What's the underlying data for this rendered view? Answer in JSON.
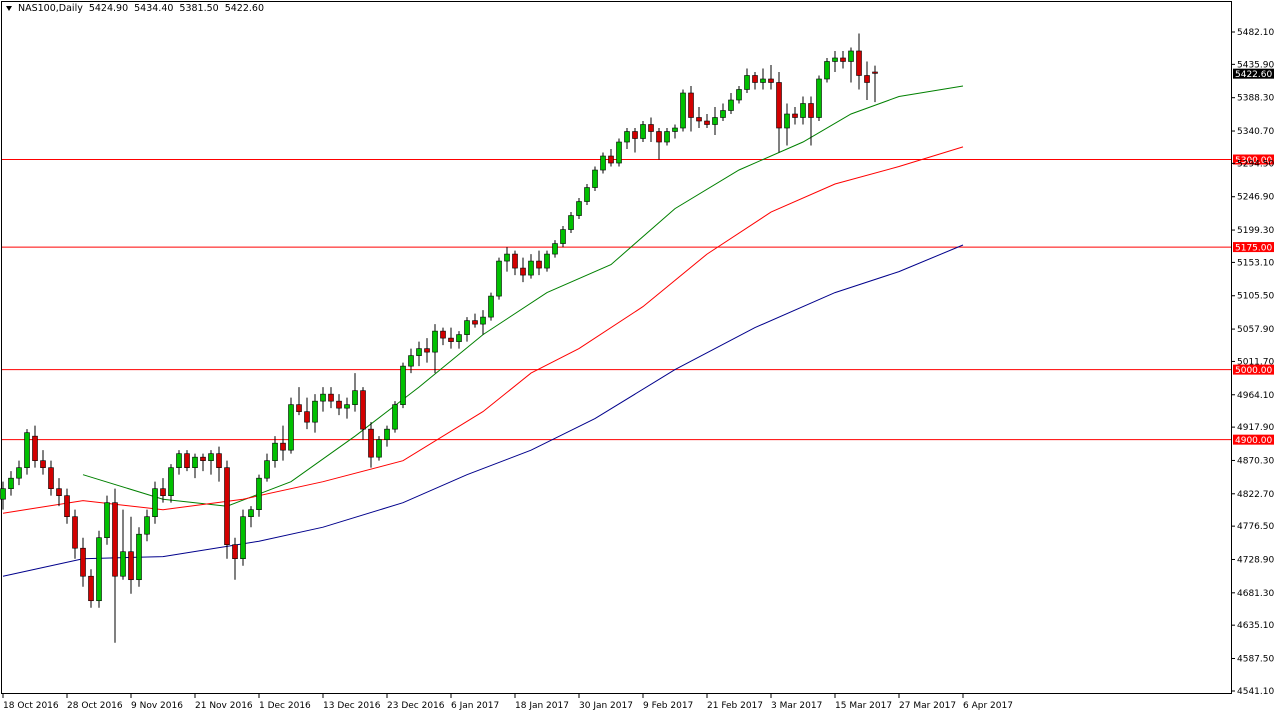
{
  "header": {
    "symbol": "NAS100,Daily",
    "open": "5424.90",
    "high": "5434.40",
    "low": "5381.50",
    "close": "5422.60"
  },
  "chart_data": {
    "type": "candlestick",
    "title": "NAS100,Daily",
    "ylim": [
      4541.1,
      5482.1
    ],
    "yticks": [
      "5482.10",
      "5435.90",
      "5388.30",
      "5340.70",
      "5294.50",
      "5246.90",
      "5199.30",
      "5153.10",
      "5105.50",
      "5057.90",
      "5011.70",
      "4964.10",
      "4917.90",
      "4870.30",
      "4822.70",
      "4776.50",
      "4728.90",
      "4681.30",
      "4635.10",
      "4587.50",
      "4541.10"
    ],
    "xticks": [
      "18 Oct 2016",
      "28 Oct 2016",
      "9 Nov 2016",
      "21 Nov 2016",
      "1 Dec 2016",
      "13 Dec 2016",
      "23 Dec 2016",
      "6 Jan 2017",
      "18 Jan 2017",
      "30 Jan 2017",
      "9 Feb 2017",
      "21 Feb 2017",
      "3 Mar 2017",
      "15 Mar 2017",
      "27 Mar 2017",
      "6 Apr 2017"
    ],
    "xtick_index": [
      0,
      8,
      16,
      24,
      32,
      40,
      48,
      56,
      64,
      72,
      80,
      88,
      96,
      104,
      112,
      120
    ],
    "current_price": "5422.60",
    "horizontal_levels": [
      {
        "label": "5300.00",
        "value": 5300.0,
        "color": "#ff0000"
      },
      {
        "label": "5175.00",
        "value": 5175.0,
        "color": "#ff0000"
      },
      {
        "label": "5000.00",
        "value": 5000.0,
        "color": "#ff0000"
      },
      {
        "label": "4900.00",
        "value": 4900.0,
        "color": "#ff0000"
      }
    ],
    "moving_averages": [
      {
        "color": "#008000",
        "points": [
          [
            10,
            4850
          ],
          [
            20,
            4815
          ],
          [
            28,
            4805
          ],
          [
            36,
            4840
          ],
          [
            44,
            4905
          ],
          [
            52,
            4975
          ],
          [
            60,
            5050
          ],
          [
            68,
            5110
          ],
          [
            76,
            5150
          ],
          [
            84,
            5230
          ],
          [
            92,
            5285
          ],
          [
            100,
            5325
          ],
          [
            106,
            5365
          ],
          [
            112,
            5390
          ],
          [
            120,
            5405
          ]
        ]
      },
      {
        "color": "#ff0000",
        "points": [
          [
            0,
            4795
          ],
          [
            10,
            4813
          ],
          [
            20,
            4800
          ],
          [
            30,
            4815
          ],
          [
            40,
            4840
          ],
          [
            50,
            4870
          ],
          [
            60,
            4940
          ],
          [
            66,
            4995
          ],
          [
            72,
            5030
          ],
          [
            80,
            5090
          ],
          [
            88,
            5165
          ],
          [
            96,
            5225
          ],
          [
            104,
            5265
          ],
          [
            112,
            5290
          ],
          [
            120,
            5318
          ]
        ]
      },
      {
        "color": "#00008b",
        "points": [
          [
            0,
            4705
          ],
          [
            10,
            4730
          ],
          [
            20,
            4733
          ],
          [
            32,
            4755
          ],
          [
            40,
            4775
          ],
          [
            50,
            4810
          ],
          [
            58,
            4850
          ],
          [
            66,
            4885
          ],
          [
            74,
            4930
          ],
          [
            84,
            5000
          ],
          [
            94,
            5060
          ],
          [
            104,
            5110
          ],
          [
            112,
            5140
          ],
          [
            120,
            5178
          ]
        ]
      }
    ],
    "candles": [
      [
        4815,
        4840,
        4800,
        4830
      ],
      [
        4830,
        4855,
        4820,
        4845
      ],
      [
        4845,
        4870,
        4835,
        4860
      ],
      [
        4860,
        4915,
        4850,
        4910
      ],
      [
        4905,
        4920,
        4860,
        4870
      ],
      [
        4870,
        4885,
        4850,
        4860
      ],
      [
        4860,
        4870,
        4820,
        4830
      ],
      [
        4830,
        4845,
        4805,
        4820
      ],
      [
        4820,
        4830,
        4780,
        4790
      ],
      [
        4790,
        4800,
        4730,
        4745
      ],
      [
        4745,
        4760,
        4690,
        4705
      ],
      [
        4705,
        4715,
        4660,
        4670
      ],
      [
        4670,
        4770,
        4660,
        4760
      ],
      [
        4760,
        4820,
        4750,
        4810
      ],
      [
        4810,
        4830,
        4610,
        4705
      ],
      [
        4705,
        4800,
        4700,
        4740
      ],
      [
        4740,
        4790,
        4680,
        4700
      ],
      [
        4700,
        4775,
        4690,
        4765
      ],
      [
        4765,
        4800,
        4755,
        4790
      ],
      [
        4790,
        4840,
        4780,
        4830
      ],
      [
        4830,
        4845,
        4810,
        4820
      ],
      [
        4820,
        4865,
        4810,
        4860
      ],
      [
        4860,
        4885,
        4850,
        4880
      ],
      [
        4880,
        4885,
        4855,
        4860
      ],
      [
        4860,
        4880,
        4845,
        4875
      ],
      [
        4875,
        4880,
        4855,
        4870
      ],
      [
        4870,
        4885,
        4850,
        4880
      ],
      [
        4880,
        4890,
        4840,
        4860
      ],
      [
        4860,
        4870,
        4730,
        4750
      ],
      [
        4750,
        4760,
        4700,
        4730
      ],
      [
        4730,
        4800,
        4720,
        4790
      ],
      [
        4790,
        4805,
        4775,
        4800
      ],
      [
        4800,
        4850,
        4790,
        4845
      ],
      [
        4845,
        4880,
        4840,
        4870
      ],
      [
        4870,
        4905,
        4860,
        4895
      ],
      [
        4895,
        4920,
        4870,
        4885
      ],
      [
        4885,
        4960,
        4880,
        4950
      ],
      [
        4950,
        4975,
        4935,
        4940
      ],
      [
        4940,
        4960,
        4915,
        4925
      ],
      [
        4925,
        4965,
        4910,
        4955
      ],
      [
        4955,
        4975,
        4940,
        4965
      ],
      [
        4965,
        4975,
        4945,
        4955
      ],
      [
        4955,
        4965,
        4935,
        4945
      ],
      [
        4945,
        4960,
        4930,
        4950
      ],
      [
        4950,
        4995,
        4940,
        4970
      ],
      [
        4970,
        4975,
        4900,
        4915
      ],
      [
        4915,
        4925,
        4860,
        4875
      ],
      [
        4875,
        4905,
        4870,
        4900
      ],
      [
        4900,
        4920,
        4890,
        4915
      ],
      [
        4915,
        4955,
        4910,
        4950
      ],
      [
        4950,
        5010,
        4945,
        5005
      ],
      [
        5005,
        5030,
        4995,
        5020
      ],
      [
        5020,
        5040,
        5005,
        5030
      ],
      [
        5030,
        5045,
        5010,
        5025
      ],
      [
        5025,
        5065,
        4995,
        5055
      ],
      [
        5055,
        5060,
        5035,
        5045
      ],
      [
        5045,
        5060,
        5030,
        5040
      ],
      [
        5040,
        5055,
        5030,
        5050
      ],
      [
        5050,
        5075,
        5040,
        5070
      ],
      [
        5070,
        5080,
        5060,
        5065
      ],
      [
        5065,
        5085,
        5050,
        5075
      ],
      [
        5075,
        5110,
        5070,
        5105
      ],
      [
        5105,
        5160,
        5100,
        5155
      ],
      [
        5155,
        5175,
        5140,
        5165
      ],
      [
        5165,
        5170,
        5135,
        5145
      ],
      [
        5145,
        5160,
        5125,
        5135
      ],
      [
        5135,
        5165,
        5130,
        5155
      ],
      [
        5155,
        5170,
        5135,
        5145
      ],
      [
        5145,
        5170,
        5140,
        5165
      ],
      [
        5165,
        5185,
        5160,
        5180
      ],
      [
        5180,
        5205,
        5175,
        5200
      ],
      [
        5200,
        5225,
        5195,
        5220
      ],
      [
        5220,
        5245,
        5215,
        5240
      ],
      [
        5240,
        5265,
        5235,
        5260
      ],
      [
        5260,
        5290,
        5255,
        5285
      ],
      [
        5285,
        5310,
        5280,
        5305
      ],
      [
        5305,
        5315,
        5290,
        5295
      ],
      [
        5295,
        5330,
        5290,
        5325
      ],
      [
        5325,
        5345,
        5315,
        5340
      ],
      [
        5340,
        5345,
        5310,
        5330
      ],
      [
        5330,
        5355,
        5325,
        5350
      ],
      [
        5350,
        5360,
        5325,
        5340
      ],
      [
        5340,
        5345,
        5300,
        5325
      ],
      [
        5325,
        5345,
        5320,
        5340
      ],
      [
        5340,
        5350,
        5330,
        5345
      ],
      [
        5345,
        5400,
        5340,
        5395
      ],
      [
        5395,
        5405,
        5340,
        5360
      ],
      [
        5360,
        5375,
        5345,
        5355
      ],
      [
        5355,
        5365,
        5345,
        5350
      ],
      [
        5350,
        5375,
        5335,
        5360
      ],
      [
        5360,
        5380,
        5355,
        5370
      ],
      [
        5370,
        5395,
        5365,
        5385
      ],
      [
        5385,
        5405,
        5380,
        5400
      ],
      [
        5400,
        5430,
        5395,
        5420
      ],
      [
        5420,
        5425,
        5400,
        5410
      ],
      [
        5410,
        5430,
        5400,
        5415
      ],
      [
        5415,
        5435,
        5400,
        5410
      ],
      [
        5410,
        5425,
        5310,
        5345
      ],
      [
        5345,
        5380,
        5320,
        5365
      ],
      [
        5365,
        5375,
        5350,
        5360
      ],
      [
        5360,
        5390,
        5350,
        5380
      ],
      [
        5380,
        5390,
        5320,
        5360
      ],
      [
        5360,
        5420,
        5355,
        5415
      ],
      [
        5415,
        5445,
        5410,
        5440
      ],
      [
        5440,
        5455,
        5425,
        5445
      ],
      [
        5445,
        5455,
        5430,
        5440
      ],
      [
        5440,
        5460,
        5410,
        5455
      ],
      [
        5455,
        5480,
        5400,
        5420
      ],
      [
        5420,
        5440,
        5385,
        5410
      ],
      [
        5425,
        5434,
        5382,
        5423
      ]
    ]
  }
}
